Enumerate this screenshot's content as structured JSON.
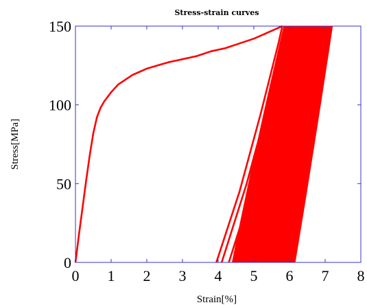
{
  "chart_data": {
    "type": "line",
    "title": "Stress-strain curves",
    "xlabel": "Strain[%]",
    "ylabel": "Stress[MPa]",
    "xlim": [
      0,
      8
    ],
    "ylim": [
      0,
      150
    ],
    "xticks": [
      "0",
      "1",
      "2",
      "3",
      "4",
      "5",
      "6",
      "7",
      "8"
    ],
    "yticks": [
      "0",
      "50",
      "100",
      "150"
    ],
    "grid": false,
    "line_color": "#ff0000",
    "axis_color": "#3333cc",
    "series": [
      {
        "x": [
          0,
          0.1,
          0.2,
          0.3,
          0.4,
          0.5,
          0.6,
          0.7,
          0.8,
          0.9,
          1.0,
          1.2,
          1.4,
          1.6,
          1.8,
          2.0,
          2.3,
          2.6,
          3.0,
          3.4,
          3.8,
          4.2,
          4.6,
          5.0,
          5.3,
          5.6,
          5.8
        ],
        "y": [
          0,
          18,
          35,
          52,
          68,
          82,
          92,
          98,
          102,
          105,
          108,
          113,
          116,
          119,
          121,
          123,
          125,
          127,
          129,
          131,
          134,
          136,
          139,
          142,
          145,
          148,
          150
        ]
      },
      {
        "x": [
          3.95,
          4.6,
          5.2,
          5.7,
          5.8
        ],
        "y": [
          0,
          45,
          95,
          140,
          150
        ]
      },
      {
        "x": [
          4.1,
          4.8,
          5.4,
          5.85,
          5.9
        ],
        "y": [
          0,
          50,
          100,
          145,
          150
        ]
      },
      {
        "x": [
          4.3,
          5.0,
          5.6,
          5.95,
          6.0
        ],
        "y": [
          0,
          50,
          105,
          145,
          150
        ]
      }
    ],
    "dense_band": {
      "start_strain_range": [
        4.4,
        6.1
      ],
      "end_strain_range": [
        5.85,
        7.15
      ],
      "stress_range": [
        0,
        150
      ],
      "cycles": 60
    }
  }
}
